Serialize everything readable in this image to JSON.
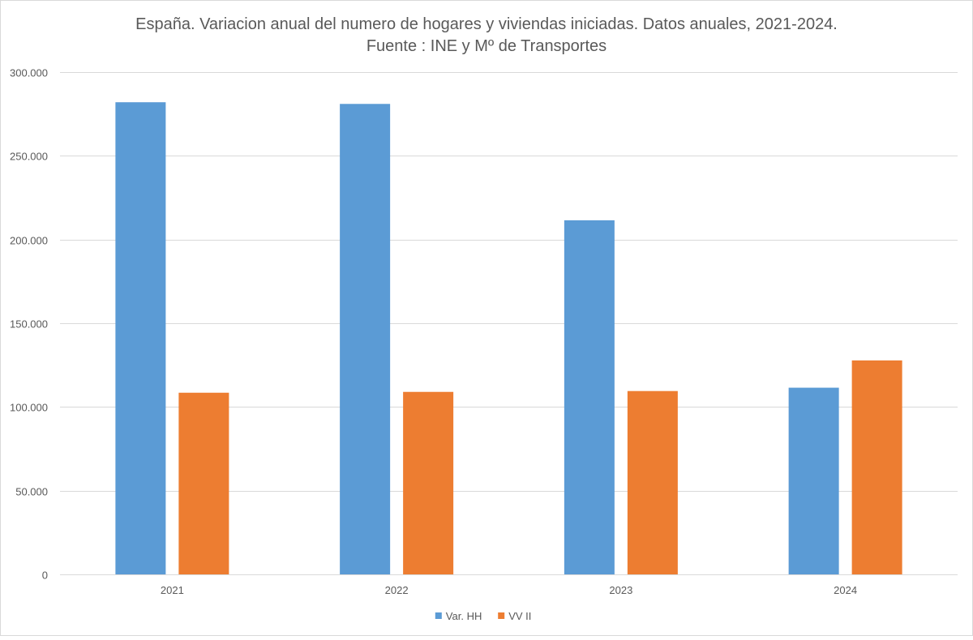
{
  "chart_data": {
    "type": "bar",
    "title": "España. Variacion anual del numero de hogares y viviendas iniciadas. Datos anuales, 2021-2024.",
    "subtitle": "Fuente : INE y Mº de Transportes",
    "xlabel": "",
    "ylabel": "",
    "categories": [
      "2021",
      "2022",
      "2023",
      "2024"
    ],
    "series": [
      {
        "name": "Var. HH",
        "color": "#5b9bd5",
        "values": [
          282000,
          281000,
          211500,
          111500
        ]
      },
      {
        "name": "VV II",
        "color": "#ed7d31",
        "values": [
          108500,
          109000,
          109500,
          127800
        ]
      }
    ],
    "ylim": [
      0,
      300000
    ],
    "yticks": [
      0,
      50000,
      100000,
      150000,
      200000,
      250000,
      300000
    ],
    "ytick_labels": [
      "0",
      "50.000",
      "100.000",
      "150.000",
      "200.000",
      "250.000",
      "300.000"
    ],
    "grid": true,
    "legend_position": "bottom"
  }
}
